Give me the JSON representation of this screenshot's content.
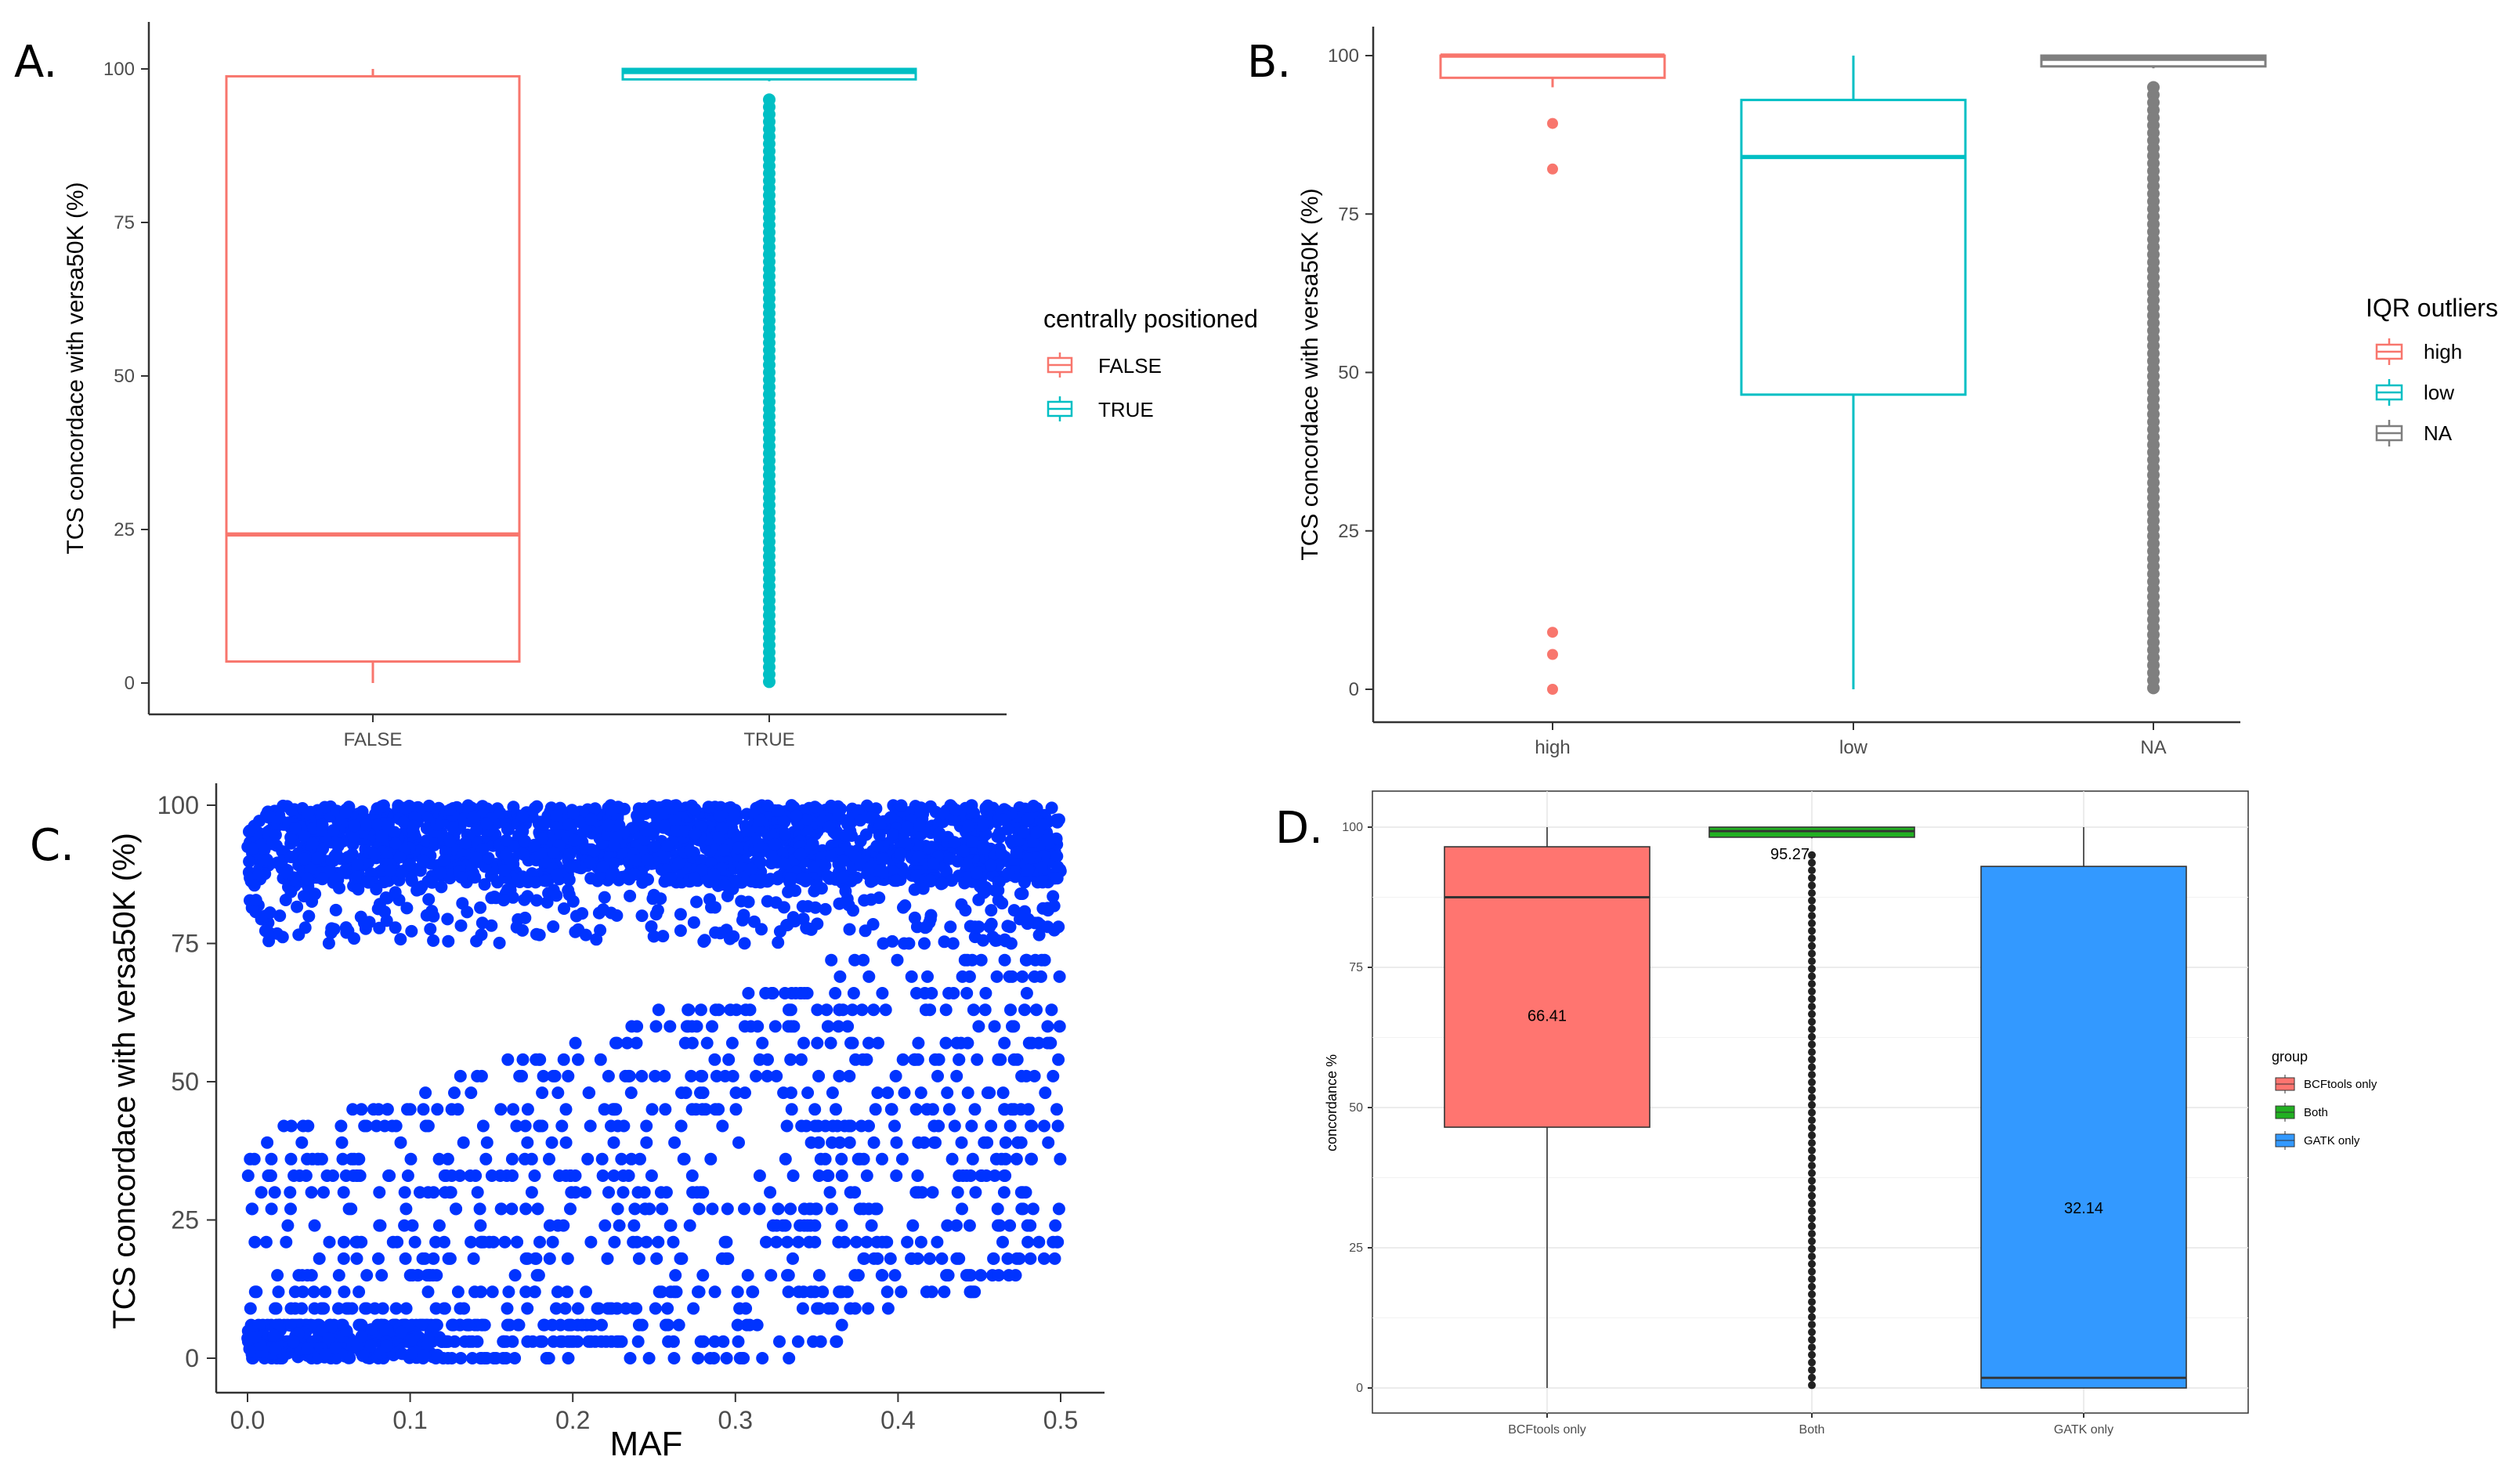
{
  "chart_data": [
    {
      "type": "box",
      "panel": "A.",
      "ylabel": "TCS concordace with versa50K (%)",
      "xlabel": "",
      "ylim": [
        0,
        100
      ],
      "yticks": [
        "0",
        "25",
        "50",
        "75",
        "100"
      ],
      "categories": [
        "FALSE",
        "TRUE"
      ],
      "legend": {
        "title": "centrally positioned",
        "items": [
          "FALSE",
          "TRUE"
        ]
      },
      "colors": [
        "#F8766D",
        "#00BFC4"
      ],
      "boxes": [
        {
          "min": 0,
          "q1": 3.5,
          "median": 24.2,
          "q3": 98.8,
          "max": 100,
          "outliers": []
        },
        {
          "min": 98,
          "q1": 98.3,
          "median": 99.5,
          "q3": 100,
          "max": 100,
          "outliers_range": [
            0,
            95
          ]
        }
      ]
    },
    {
      "type": "box",
      "panel": "B.",
      "ylabel": "TCS concordace with versa50K (%)",
      "xlabel": "",
      "ylim": [
        0,
        100
      ],
      "yticks": [
        "0",
        "25",
        "50",
        "75",
        "100"
      ],
      "categories": [
        "high",
        "low",
        "NA"
      ],
      "legend": {
        "title": "IQR outliers",
        "items": [
          "high",
          "low",
          "NA"
        ]
      },
      "colors": [
        "#F8766D",
        "#00BFC4",
        "#7F7F7F"
      ],
      "boxes": [
        {
          "min": 95,
          "q1": 96.5,
          "median": 100,
          "q3": 100,
          "max": 100,
          "outliers": [
            89.3,
            82.1,
            9,
            5.5,
            0
          ]
        },
        {
          "min": 0,
          "q1": 46.5,
          "median": 84,
          "q3": 93,
          "max": 100,
          "outliers": []
        },
        {
          "min": 98,
          "q1": 98.3,
          "median": 99.5,
          "q3": 100,
          "max": 100,
          "outliers_range": [
            0,
            95
          ]
        }
      ]
    },
    {
      "type": "scatter",
      "panel": "C.",
      "xlabel": "MAF",
      "ylabel": "TCS concordace with versa50K (%)",
      "xlim": [
        0,
        0.5
      ],
      "ylim": [
        0,
        100
      ],
      "xticks": [
        "0.0",
        "0.1",
        "0.2",
        "0.3",
        "0.4",
        "0.5"
      ],
      "yticks": [
        "0",
        "25",
        "50",
        "75",
        "100"
      ],
      "color": "#0033FF",
      "trend": "dense near 100% across MAF 0-0.5; lower values sparse at low MAF and rising toward ~40-50% near MAF 0.3-0.5"
    },
    {
      "type": "box",
      "panel": "D.",
      "ylabel": "concordance %",
      "xlabel": "",
      "ylim": [
        0,
        100
      ],
      "yticks": [
        "0",
        "25",
        "50",
        "75",
        "100"
      ],
      "categories": [
        "BCFtools only",
        "Both",
        "GATK only"
      ],
      "legend": {
        "title": "group",
        "items": [
          "BCFtools only",
          "Both",
          "GATK only"
        ]
      },
      "colors": [
        "#FF7570",
        "#22B022",
        "#3399FF"
      ],
      "means": [
        "66.41",
        "95.27",
        "32.14"
      ],
      "boxes": [
        {
          "min": 0,
          "q1": 46.5,
          "median": 87.5,
          "q3": 96.5,
          "max": 100,
          "mean": 66.41
        },
        {
          "min": 98,
          "q1": 98.2,
          "median": 99.3,
          "q3": 100,
          "max": 100,
          "mean": 95.27,
          "outliers_range": [
            0,
            95
          ]
        },
        {
          "min": 0,
          "q1": 0,
          "median": 1.8,
          "q3": 93,
          "max": 100,
          "mean": 32.14
        }
      ]
    }
  ]
}
